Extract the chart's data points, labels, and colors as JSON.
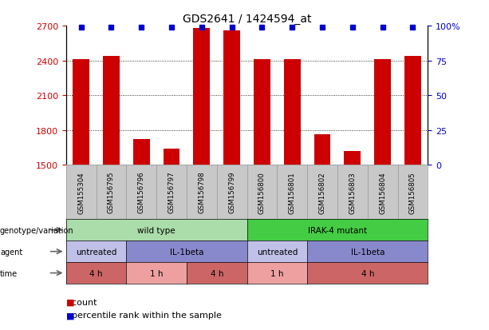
{
  "title": "GDS2641 / 1424594_at",
  "samples": [
    "GSM155304",
    "GSM156795",
    "GSM156796",
    "GSM156797",
    "GSM156798",
    "GSM156799",
    "GSM156800",
    "GSM156801",
    "GSM156802",
    "GSM156803",
    "GSM156804",
    "GSM156805"
  ],
  "counts": [
    2410,
    2440,
    1720,
    1640,
    2680,
    2660,
    2410,
    2410,
    1760,
    1620,
    2410,
    2440
  ],
  "percentile_ranks": [
    99,
    99,
    99,
    99,
    99,
    99,
    99,
    99,
    99,
    99,
    99,
    99
  ],
  "bar_color": "#cc0000",
  "dot_color": "#0000cc",
  "ylim_left": [
    1500,
    2700
  ],
  "yticks_left": [
    1500,
    1800,
    2100,
    2400,
    2700
  ],
  "yticks_right": [
    0,
    25,
    50,
    75,
    100
  ],
  "right_tick_labels": [
    "0",
    "25",
    "50",
    "75",
    "100%"
  ],
  "genotype_row": {
    "label": "genotype/variation",
    "groups": [
      {
        "text": "wild type",
        "start": 0,
        "end": 6,
        "color": "#aaddaa"
      },
      {
        "text": "IRAK-4 mutant",
        "start": 6,
        "end": 12,
        "color": "#44cc44"
      }
    ]
  },
  "agent_row": {
    "label": "agent",
    "groups": [
      {
        "text": "untreated",
        "start": 0,
        "end": 2,
        "color": "#c0c0e8"
      },
      {
        "text": "IL-1beta",
        "start": 2,
        "end": 6,
        "color": "#8888cc"
      },
      {
        "text": "untreated",
        "start": 6,
        "end": 8,
        "color": "#c0c0e8"
      },
      {
        "text": "IL-1beta",
        "start": 8,
        "end": 12,
        "color": "#8888cc"
      }
    ]
  },
  "time_row": {
    "label": "time",
    "groups": [
      {
        "text": "4 h",
        "start": 0,
        "end": 2,
        "color": "#cc6666"
      },
      {
        "text": "1 h",
        "start": 2,
        "end": 4,
        "color": "#eea0a0"
      },
      {
        "text": "4 h",
        "start": 4,
        "end": 6,
        "color": "#cc6666"
      },
      {
        "text": "1 h",
        "start": 6,
        "end": 8,
        "color": "#eea0a0"
      },
      {
        "text": "4 h",
        "start": 8,
        "end": 12,
        "color": "#cc6666"
      }
    ]
  },
  "legend_count_color": "#cc0000",
  "legend_pct_color": "#0000cc",
  "xticklabel_bg": "#c8c8c8"
}
